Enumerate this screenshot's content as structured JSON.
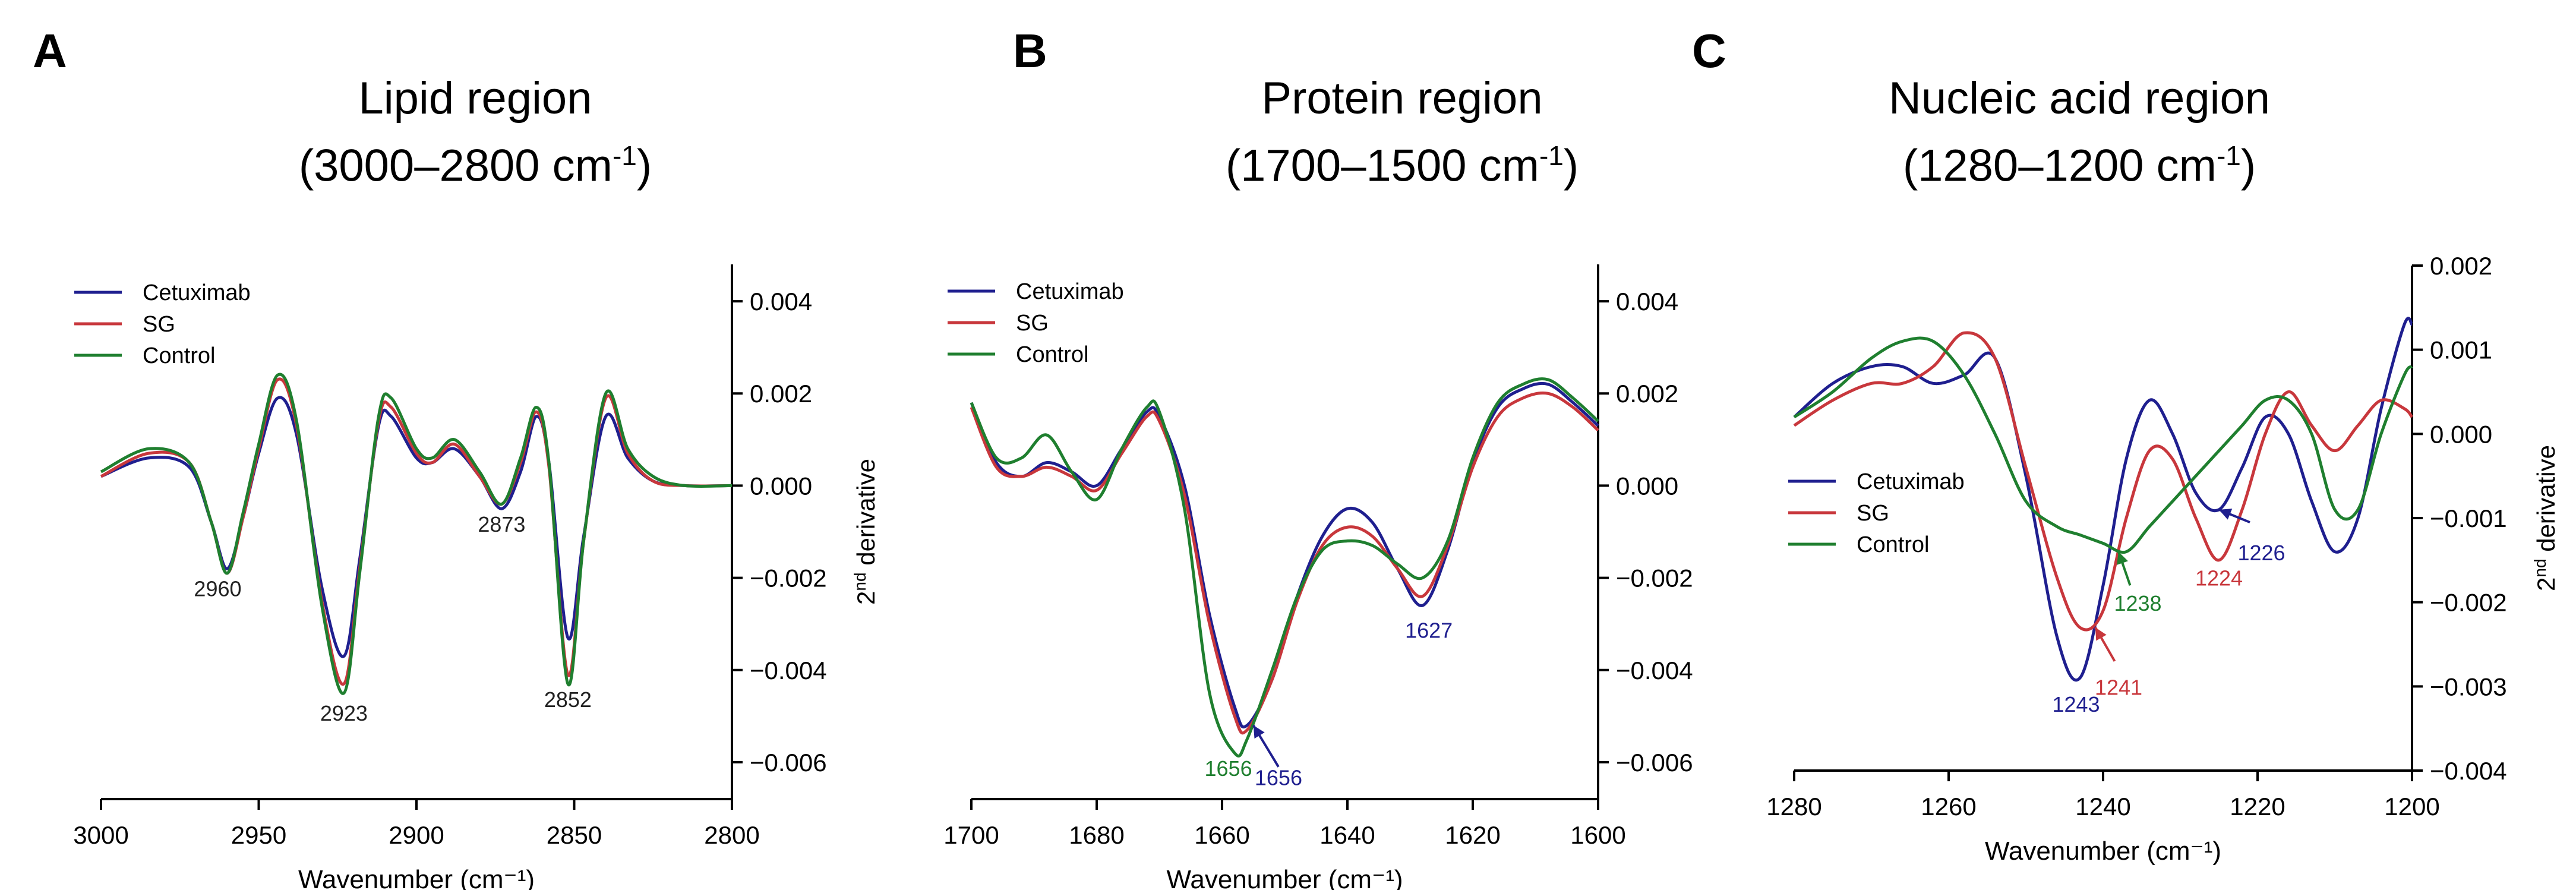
{
  "figure": {
    "panels": [
      {
        "letter": "A",
        "title_line1": "Lipid region",
        "title_line2_main": "(3000–2800 cm",
        "title_sup": "-1",
        "title_close": ")"
      },
      {
        "letter": "B",
        "title_line1": "Protein region",
        "title_line2_main": "(1700–1500 cm",
        "title_sup": "-1",
        "title_close": ")"
      },
      {
        "letter": "C",
        "title_line1": "Nucleic acid region",
        "title_line2_main": "(1280–1200 cm",
        "title_sup": "-1",
        "title_close": ")"
      }
    ],
    "colors": {
      "Cetuximab": "#1f1f8f",
      "SG": "#c8373c",
      "Control": "#1f7f2f"
    }
  },
  "chart_data": [
    {
      "type": "line",
      "xlabel": "Wavenumber (cm⁻¹)",
      "ylabel_main": "2",
      "ylabel_sup": "nd",
      "ylabel_rest": " derivative",
      "xlim": [
        3000,
        2800
      ],
      "ylim": [
        -0.0068,
        0.0048
      ],
      "xticks": [
        3000,
        2950,
        2900,
        2850,
        2800
      ],
      "xtick_labels": [
        "3000",
        "2950",
        "2900",
        "2850",
        "2800"
      ],
      "yticks": [
        0.004,
        0.002,
        0.0,
        -0.002,
        -0.004,
        -0.006
      ],
      "ytick_labels": [
        "0.004",
        "0.002",
        "0.000",
        "−0.002",
        "−0.004",
        "−0.006"
      ],
      "legend_position": "top-left",
      "series": [
        {
          "name": "Cetuximab",
          "x": [
            3000,
            2985,
            2972,
            2965,
            2960,
            2955,
            2950,
            2944,
            2938,
            2930,
            2923,
            2918,
            2912,
            2908,
            2900,
            2895,
            2888,
            2880,
            2873,
            2867,
            2862,
            2858,
            2852,
            2847,
            2840,
            2833,
            2825,
            2815,
            2800
          ],
          "y": [
            0.0002,
            0.0006,
            0.0004,
            -0.0008,
            -0.0018,
            -0.0007,
            0.0007,
            0.0019,
            0.0011,
            -0.0022,
            -0.0037,
            -0.0016,
            0.0013,
            0.0015,
            0.0006,
            0.0005,
            0.0008,
            0.0002,
            -0.0005,
            0.0003,
            0.0015,
            0.0005,
            -0.0033,
            -0.0011,
            0.0015,
            0.0006,
            0.0001,
            0.0,
            0.0
          ]
        },
        {
          "name": "SG",
          "x": [
            3000,
            2985,
            2972,
            2965,
            2960,
            2955,
            2950,
            2944,
            2938,
            2930,
            2923,
            2918,
            2912,
            2908,
            2900,
            2895,
            2888,
            2880,
            2873,
            2867,
            2862,
            2858,
            2852,
            2847,
            2840,
            2833,
            2825,
            2815,
            2800
          ],
          "y": [
            0.0002,
            0.0007,
            0.0005,
            -0.0008,
            -0.0019,
            -0.0007,
            0.0008,
            0.0023,
            0.0013,
            -0.0025,
            -0.0043,
            -0.0018,
            0.0014,
            0.0017,
            0.0007,
            0.0005,
            0.0009,
            0.0002,
            -0.0004,
            0.0005,
            0.0016,
            0.0004,
            -0.0041,
            -0.0012,
            0.0019,
            0.0007,
            0.0001,
            0.0,
            0.0
          ]
        },
        {
          "name": "Control",
          "x": [
            3000,
            2985,
            2972,
            2965,
            2960,
            2955,
            2950,
            2944,
            2938,
            2930,
            2923,
            2918,
            2912,
            2908,
            2900,
            2895,
            2888,
            2880,
            2873,
            2867,
            2862,
            2858,
            2852,
            2847,
            2840,
            2833,
            2825,
            2815,
            2800
          ],
          "y": [
            0.0003,
            0.0008,
            0.0005,
            -0.0008,
            -0.0019,
            -0.0006,
            0.0009,
            0.0024,
            0.0014,
            -0.0026,
            -0.0045,
            -0.0019,
            0.0015,
            0.0019,
            0.0008,
            0.0006,
            0.001,
            0.0003,
            -0.0004,
            0.0006,
            0.0017,
            0.0005,
            -0.0043,
            -0.0012,
            0.002,
            0.0008,
            0.0002,
            0.0,
            0.0
          ]
        }
      ],
      "annotations": [
        {
          "text": "2960",
          "x": 2963,
          "y": -0.0024,
          "color": "#222222"
        },
        {
          "text": "2923",
          "x": 2923,
          "y": -0.0051,
          "color": "#222222"
        },
        {
          "text": "2873",
          "x": 2873,
          "y": -0.001,
          "color": "#222222"
        },
        {
          "text": "2852",
          "x": 2852,
          "y": -0.0048,
          "color": "#222222"
        }
      ],
      "arrows": []
    },
    {
      "type": "line",
      "xlabel": "Wavenumber (cm⁻¹)",
      "ylabel_main": "2",
      "ylabel_sup": "nd",
      "ylabel_rest": " derivative",
      "xlim": [
        1700,
        1600
      ],
      "ylim": [
        -0.0068,
        0.0048
      ],
      "xticks": [
        1700,
        1680,
        1660,
        1640,
        1620,
        1600
      ],
      "xtick_labels": [
        "1700",
        "1680",
        "1660",
        "1640",
        "1620",
        "1600"
      ],
      "yticks": [
        0.004,
        0.002,
        0.0,
        -0.002,
        -0.004,
        -0.006
      ],
      "ytick_labels": [
        "0.004",
        "0.002",
        "0.000",
        "−0.002",
        "−0.004",
        "−0.006"
      ],
      "legend_position": "top-left",
      "series": [
        {
          "name": "Cetuximab",
          "x": [
            1700,
            1696,
            1692,
            1688,
            1684,
            1680,
            1676,
            1672,
            1670,
            1666,
            1662,
            1658,
            1656,
            1652,
            1648,
            1644,
            1640,
            1636,
            1632,
            1628,
            1624,
            1620,
            1616,
            1612,
            1608,
            1604,
            1600
          ],
          "y": [
            0.0018,
            0.0005,
            0.0002,
            0.0005,
            0.0003,
            0.0,
            0.0008,
            0.0016,
            0.0015,
            0.0,
            -0.0028,
            -0.0048,
            -0.0052,
            -0.0042,
            -0.0024,
            -0.0011,
            -0.0005,
            -0.0008,
            -0.0018,
            -0.0026,
            -0.0014,
            0.0005,
            0.0017,
            0.0021,
            0.0022,
            0.0018,
            0.0013
          ]
        },
        {
          "name": "SG",
          "x": [
            1700,
            1696,
            1692,
            1688,
            1684,
            1680,
            1676,
            1672,
            1670,
            1666,
            1662,
            1658,
            1656,
            1652,
            1648,
            1644,
            1640,
            1636,
            1632,
            1628,
            1624,
            1620,
            1616,
            1612,
            1608,
            1604,
            1600
          ],
          "y": [
            0.0017,
            0.0004,
            0.0002,
            0.0004,
            0.0002,
            -0.0001,
            0.0007,
            0.0015,
            0.0014,
            -0.0002,
            -0.003,
            -0.005,
            -0.0053,
            -0.0042,
            -0.0025,
            -0.0013,
            -0.0009,
            -0.0011,
            -0.0018,
            -0.0024,
            -0.0013,
            0.0004,
            0.0015,
            0.0019,
            0.002,
            0.0017,
            0.0012
          ]
        },
        {
          "name": "Control",
          "x": [
            1700,
            1696,
            1692,
            1688,
            1684,
            1680,
            1676,
            1672,
            1670,
            1666,
            1662,
            1658,
            1656,
            1652,
            1648,
            1644,
            1640,
            1636,
            1632,
            1628,
            1624,
            1620,
            1616,
            1612,
            1608,
            1604,
            1600
          ],
          "y": [
            0.0018,
            0.0006,
            0.0006,
            0.0011,
            0.0003,
            -0.0003,
            0.0008,
            0.0017,
            0.0016,
            -0.0005,
            -0.0045,
            -0.0058,
            -0.0055,
            -0.004,
            -0.0024,
            -0.0014,
            -0.0012,
            -0.0013,
            -0.0017,
            -0.002,
            -0.0012,
            0.0006,
            0.0018,
            0.0022,
            0.0023,
            0.0019,
            0.0014
          ]
        }
      ],
      "annotations": [
        {
          "text": "1656",
          "x": 1659,
          "y": -0.0063,
          "color": "#1f7f2f"
        },
        {
          "text": "1656",
          "x": 1651,
          "y": -0.0065,
          "color": "#1f1f8f"
        },
        {
          "text": "1627",
          "x": 1627,
          "y": -0.0033,
          "color": "#1f1f8f"
        }
      ],
      "arrows": [
        {
          "from": [
            1651,
            -0.0061
          ],
          "to": [
            1655,
            -0.0052
          ],
          "color": "#1f1f8f"
        }
      ]
    },
    {
      "type": "line",
      "xlabel": "Wavenumber (cm⁻¹)",
      "ylabel_main": "2",
      "ylabel_sup": "nd",
      "ylabel_rest": " derivative",
      "xlim": [
        1280,
        1200
      ],
      "ylim": [
        -0.004,
        0.002
      ],
      "xticks": [
        1280,
        1260,
        1240,
        1220,
        1200
      ],
      "xtick_labels": [
        "1280",
        "1260",
        "1240",
        "1220",
        "1200"
      ],
      "yticks": [
        0.002,
        0.001,
        0.0,
        -0.001,
        -0.002,
        -0.003,
        -0.004
      ],
      "ytick_labels": [
        "0.002",
        "0.001",
        "0.000",
        "−0.001",
        "−0.002",
        "−0.003",
        "−0.004"
      ],
      "legend_position": "middle-left",
      "series": [
        {
          "name": "Cetuximab",
          "x": [
            1280,
            1275,
            1270,
            1266,
            1262,
            1258,
            1254,
            1250,
            1246,
            1243,
            1240,
            1237,
            1234,
            1231,
            1228,
            1225,
            1222,
            1219,
            1216,
            1213,
            1210,
            1207,
            1204,
            1201,
            1200
          ],
          "y": [
            0.0002,
            0.0006,
            0.0008,
            0.0008,
            0.0006,
            0.0007,
            0.0009,
            -0.0005,
            -0.0024,
            -0.0029,
            -0.0018,
            -0.0003,
            0.0004,
            0.0,
            -0.0007,
            -0.0009,
            -0.0004,
            0.0002,
            0.0,
            -0.0008,
            -0.0014,
            -0.001,
            0.0003,
            0.0013,
            0.0013
          ]
        },
        {
          "name": "SG",
          "x": [
            1280,
            1275,
            1270,
            1266,
            1262,
            1258,
            1254,
            1250,
            1246,
            1243,
            1240,
            1237,
            1234,
            1231,
            1228,
            1225,
            1222,
            1219,
            1216,
            1213,
            1210,
            1207,
            1204,
            1201,
            1200
          ],
          "y": [
            0.0001,
            0.0004,
            0.0006,
            0.0006,
            0.0008,
            0.0012,
            0.0009,
            -0.0004,
            -0.0017,
            -0.0023,
            -0.0021,
            -0.001,
            -0.0002,
            -0.0003,
            -0.001,
            -0.0015,
            -0.0009,
            0.0,
            0.0005,
            0.0001,
            -0.0002,
            0.0001,
            0.0004,
            0.0003,
            0.0002
          ]
        },
        {
          "name": "Control",
          "x": [
            1280,
            1275,
            1270,
            1266,
            1262,
            1258,
            1254,
            1250,
            1246,
            1243,
            1240,
            1237,
            1234,
            1231,
            1228,
            1225,
            1222,
            1219,
            1216,
            1213,
            1210,
            1207,
            1204,
            1201,
            1200
          ],
          "y": [
            0.0002,
            0.0005,
            0.0009,
            0.0011,
            0.0011,
            0.0007,
            0.0,
            -0.0008,
            -0.0011,
            -0.0012,
            -0.0013,
            -0.0014,
            -0.0011,
            -0.0008,
            -0.0005,
            -0.0002,
            0.0001,
            0.0004,
            0.0004,
            0.0,
            -0.0009,
            -0.0009,
            0.0,
            0.0007,
            0.0008
          ]
        }
      ],
      "annotations": [
        {
          "text": "1243",
          "x": 1243.5,
          "y": -0.0033,
          "color": "#1f1f8f"
        },
        {
          "text": "1241",
          "x": 1238,
          "y": -0.0031,
          "color": "#c8373c"
        },
        {
          "text": "1238",
          "x": 1235.5,
          "y": -0.0021,
          "color": "#1f7f2f"
        },
        {
          "text": "1224",
          "x": 1225,
          "y": -0.0018,
          "color": "#c8373c"
        },
        {
          "text": "1226",
          "x": 1219.5,
          "y": -0.0015,
          "color": "#1f1f8f"
        }
      ],
      "arrows": [
        {
          "from": [
            1238.5,
            -0.0027
          ],
          "to": [
            1241,
            -0.0023
          ],
          "color": "#c8373c"
        },
        {
          "from": [
            1236.5,
            -0.0018
          ],
          "to": [
            1238,
            -0.0014
          ],
          "color": "#1f7f2f"
        },
        {
          "from": [
            1221,
            -0.00105
          ],
          "to": [
            1225,
            -0.0009
          ],
          "color": "#1f1f8f"
        }
      ]
    }
  ]
}
